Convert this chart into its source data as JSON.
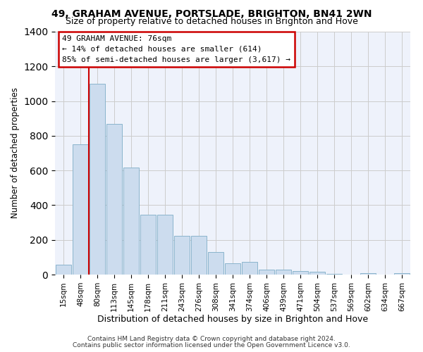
{
  "title1": "49, GRAHAM AVENUE, PORTSLADE, BRIGHTON, BN41 2WN",
  "title2": "Size of property relative to detached houses in Brighton and Hove",
  "xlabel": "Distribution of detached houses by size in Brighton and Hove",
  "ylabel": "Number of detached properties",
  "categories": [
    "15sqm",
    "48sqm",
    "80sqm",
    "113sqm",
    "145sqm",
    "178sqm",
    "211sqm",
    "243sqm",
    "276sqm",
    "308sqm",
    "341sqm",
    "374sqm",
    "406sqm",
    "439sqm",
    "471sqm",
    "504sqm",
    "537sqm",
    "569sqm",
    "602sqm",
    "634sqm",
    "667sqm"
  ],
  "values": [
    55,
    750,
    1100,
    870,
    615,
    345,
    345,
    225,
    225,
    130,
    65,
    75,
    30,
    30,
    20,
    15,
    5,
    0,
    10,
    0,
    10
  ],
  "bar_color": "#ccdcee",
  "bar_edge_color": "#8ab4cc",
  "grid_color": "#cccccc",
  "bg_color": "#eef2fb",
  "red_line_color": "#cc0000",
  "red_line_x": 1.5,
  "annotation_line1": "49 GRAHAM AVENUE: 76sqm",
  "annotation_line2": "← 14% of detached houses are smaller (614)",
  "annotation_line3": "85% of semi-detached houses are larger (3,617) →",
  "annotation_box_edge_color": "#cc0000",
  "footer1": "Contains HM Land Registry data © Crown copyright and database right 2024.",
  "footer2": "Contains public sector information licensed under the Open Government Licence v3.0.",
  "ylim": [
    0,
    1400
  ]
}
